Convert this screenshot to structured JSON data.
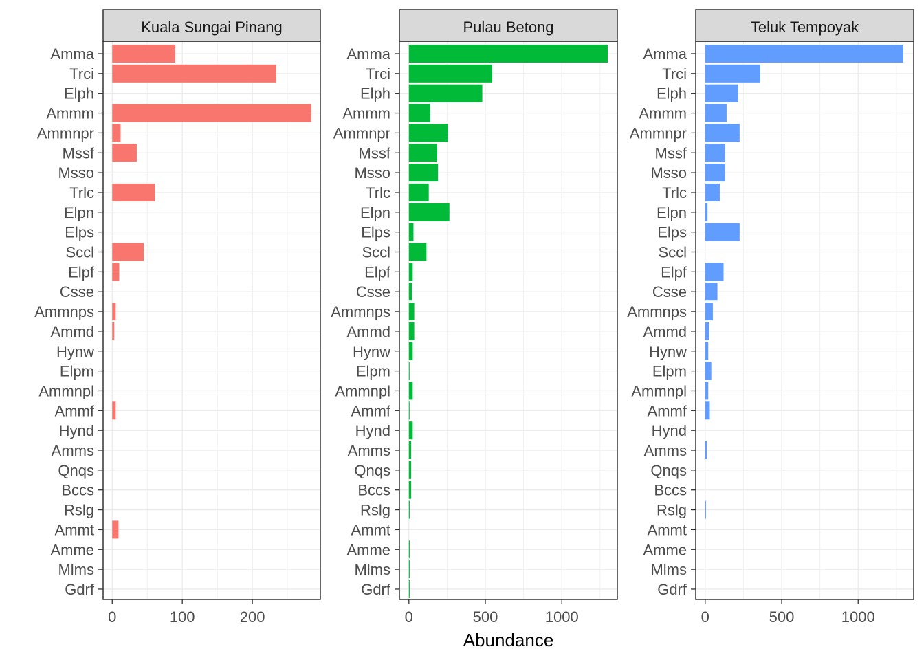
{
  "chart_data": {
    "type": "bar",
    "orientation": "horizontal",
    "xlabel": "Abundance",
    "ylabel": "",
    "grid": true,
    "legend": "none",
    "categories": [
      "Amma",
      "Trci",
      "Elph",
      "Ammm",
      "Ammnpr",
      "Mssf",
      "Msso",
      "Trlc",
      "Elpn",
      "Elps",
      "Sccl",
      "Elpf",
      "Csse",
      "Ammnps",
      "Ammd",
      "Hynw",
      "Elpm",
      "Ammnpl",
      "Ammf",
      "Hynd",
      "Amms",
      "Qnqs",
      "Bccs",
      "Rslg",
      "Ammt",
      "Amme",
      "Mlms",
      "Gdrf"
    ],
    "panels": [
      {
        "name": "Kuala Sungai Pinang",
        "color": "#F8766D",
        "xlim": [
          -13,
          297
        ],
        "xticks": [
          0,
          100,
          200
        ],
        "xtick_labels": [
          "0",
          "100",
          "200"
        ],
        "values": [
          90,
          234,
          0,
          284,
          12,
          35,
          0,
          61,
          0,
          0,
          45,
          10,
          0,
          5,
          3,
          0,
          0,
          0,
          5,
          0,
          0,
          0,
          0,
          0,
          9,
          0,
          0,
          0
        ]
      },
      {
        "name": "Pulau Betong",
        "color": "#00BA38",
        "xlim": [
          -62,
          1363
        ],
        "xticks": [
          0,
          500,
          1000
        ],
        "xtick_labels": [
          "0",
          "500",
          "1000"
        ],
        "values": [
          1300,
          545,
          480,
          140,
          255,
          185,
          190,
          130,
          265,
          30,
          115,
          25,
          20,
          35,
          35,
          25,
          3,
          25,
          3,
          25,
          15,
          15,
          15,
          5,
          0,
          5,
          5,
          5
        ]
      },
      {
        "name": "Teluk Tempoyak",
        "color": "#619CFF",
        "xlim": [
          -62,
          1363
        ],
        "xticks": [
          0,
          500,
          1000
        ],
        "xtick_labels": [
          "0",
          "500",
          "1000"
        ],
        "values": [
          1295,
          360,
          215,
          140,
          225,
          130,
          130,
          95,
          15,
          225,
          0,
          120,
          80,
          50,
          25,
          20,
          40,
          20,
          30,
          0,
          10,
          0,
          0,
          5,
          0,
          0,
          0,
          0
        ]
      }
    ]
  }
}
